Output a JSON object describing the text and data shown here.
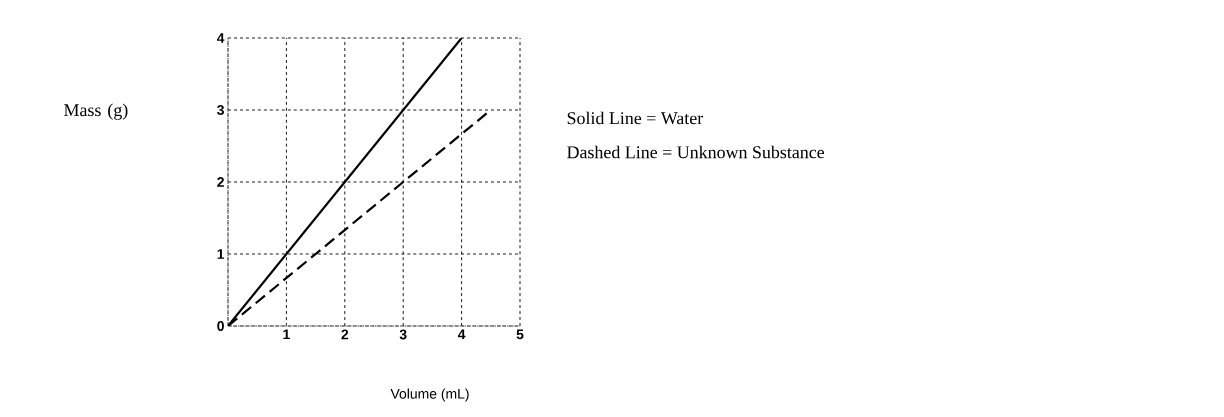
{
  "chart_data": {
    "type": "line",
    "xlabel": "Volume (mL)",
    "ylabel": "Mass (g)",
    "xlim": [
      0,
      5
    ],
    "ylim": [
      0,
      4
    ],
    "xticks": [
      {
        "value": 0,
        "label": null
      },
      1,
      2,
      3,
      4,
      5
    ],
    "yticks": [
      0,
      1,
      2,
      3,
      4
    ],
    "grid": true,
    "marker": "none",
    "series": [
      {
        "color": "#000000",
        "line_style": "solid",
        "x": [
          0,
          4
        ],
        "values": [
          0,
          4
        ]
      },
      {
        "color": "#000000",
        "line_style": "dashed",
        "x": [
          0,
          4.5
        ],
        "values": [
          0,
          3
        ]
      }
    ],
    "annotations": [
      "Solid Line = Water",
      "Dashed Line = Unknown Substance"
    ]
  }
}
